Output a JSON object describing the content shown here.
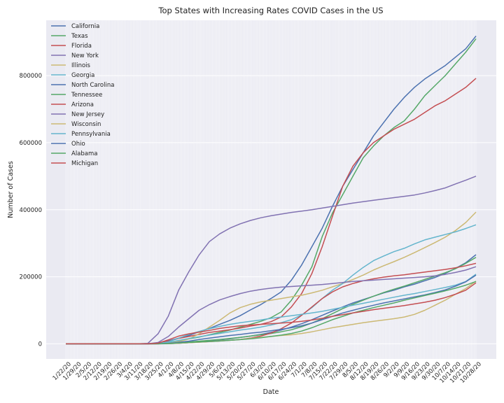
{
  "chart_data": {
    "type": "line",
    "title": "Top States with Increasing Rates COVID Cases in the US",
    "xlabel": "Date",
    "ylabel": "Number of Cases",
    "x_tick_labels": [
      "1/22/20",
      "1/29/20",
      "2/5/20",
      "2/12/20",
      "2/19/20",
      "2/26/20",
      "3/4/20",
      "3/11/20",
      "3/18/20",
      "3/25/20",
      "4/1/20",
      "4/8/20",
      "4/15/20",
      "4/22/20",
      "4/29/20",
      "5/6/20",
      "5/13/20",
      "5/20/20",
      "5/27/20",
      "6/3/20",
      "6/10/20",
      "6/17/20",
      "6/24/20",
      "7/1/20",
      "7/8/20",
      "7/15/20",
      "7/22/20",
      "7/29/20",
      "8/5/20",
      "8/12/20",
      "8/19/20",
      "8/26/20",
      "9/2/20",
      "9/9/20",
      "9/16/20",
      "9/23/20",
      "9/30/20",
      "10/7/20",
      "10/14/20",
      "10/21/20",
      "10/28/20"
    ],
    "y_ticks": [
      0,
      200000,
      400000,
      600000,
      800000
    ],
    "ylim": [
      -45000,
      965000
    ],
    "grid": true,
    "legend_position": "top-left",
    "series": [
      {
        "name": "California",
        "color": "#4c72b0",
        "values": [
          0,
          0,
          0,
          0,
          0,
          0,
          0,
          0,
          800,
          2500,
          9000,
          17000,
          25000,
          36000,
          46000,
          58000,
          70000,
          84000,
          101000,
          117000,
          135000,
          155000,
          190000,
          235000,
          290000,
          345000,
          410000,
          470000,
          520000,
          570000,
          620000,
          660000,
          700000,
          735000,
          765000,
          790000,
          810000,
          830000,
          855000,
          880000,
          918000
        ]
      },
      {
        "name": "Texas",
        "color": "#55a868",
        "values": [
          0,
          0,
          0,
          0,
          0,
          0,
          0,
          0,
          100,
          600,
          3000,
          9000,
          15000,
          20000,
          27000,
          34000,
          41000,
          50000,
          58000,
          67000,
          78000,
          95000,
          130000,
          175000,
          230000,
          320000,
          390000,
          445000,
          500000,
          555000,
          590000,
          620000,
          645000,
          665000,
          700000,
          740000,
          770000,
          800000,
          835000,
          870000,
          910000
        ]
      },
      {
        "name": "Florida",
        "color": "#c44e52",
        "values": [
          0,
          0,
          0,
          0,
          0,
          0,
          0,
          0,
          300,
          2000,
          7500,
          16000,
          22000,
          28000,
          34000,
          38000,
          42000,
          47000,
          53000,
          58000,
          66000,
          80000,
          110000,
          150000,
          210000,
          290000,
          380000,
          470000,
          530000,
          570000,
          600000,
          620000,
          640000,
          655000,
          670000,
          690000,
          710000,
          725000,
          745000,
          765000,
          792000
        ]
      },
      {
        "name": "New York",
        "color": "#8172b2",
        "values": [
          0,
          0,
          0,
          0,
          0,
          0,
          0,
          0,
          1500,
          30000,
          83000,
          160000,
          215000,
          265000,
          305000,
          328000,
          345000,
          358000,
          368000,
          376000,
          382000,
          387000,
          392000,
          396000,
          400000,
          405000,
          410000,
          415000,
          420000,
          424000,
          428000,
          432000,
          436000,
          440000,
          444000,
          450000,
          457000,
          465000,
          477000,
          488000,
          500000
        ]
      },
      {
        "name": "Illinois",
        "color": "#ccb974",
        "values": [
          0,
          0,
          0,
          0,
          0,
          0,
          0,
          0,
          0,
          300,
          1800,
          6500,
          14000,
          30000,
          50000,
          70000,
          92000,
          108000,
          118000,
          125000,
          130000,
          135000,
          140000,
          145000,
          152000,
          160000,
          170000,
          180000,
          192000,
          205000,
          220000,
          233000,
          245000,
          258000,
          272000,
          287000,
          302000,
          318000,
          338000,
          362000,
          393000
        ]
      },
      {
        "name": "Georgia",
        "color": "#64b5cd",
        "values": [
          0,
          0,
          0,
          0,
          0,
          0,
          0,
          0,
          100,
          1100,
          4500,
          10000,
          16000,
          21000,
          26000,
          31000,
          36000,
          41000,
          45000,
          50000,
          56000,
          63000,
          72000,
          86000,
          108000,
          135000,
          160000,
          180000,
          205000,
          228000,
          248000,
          262000,
          275000,
          285000,
          298000,
          310000,
          318000,
          326000,
          334000,
          344000,
          355000
        ]
      },
      {
        "name": "North Carolina",
        "color": "#4c72b0",
        "values": [
          0,
          0,
          0,
          0,
          0,
          0,
          0,
          0,
          0,
          100,
          500,
          1800,
          3500,
          6000,
          9000,
          12000,
          15000,
          19000,
          23000,
          28000,
          34000,
          41000,
          50000,
          60000,
          72000,
          85000,
          98000,
          110000,
          122000,
          132000,
          142000,
          152000,
          160000,
          170000,
          178000,
          188000,
          198000,
          210000,
          225000,
          242000,
          266000
        ]
      },
      {
        "name": "Tennessee",
        "color": "#55a868",
        "values": [
          0,
          0,
          0,
          0,
          0,
          0,
          0,
          0,
          0,
          200,
          1000,
          3000,
          5500,
          8000,
          10500,
          13000,
          16000,
          19000,
          23000,
          27000,
          31000,
          36000,
          42000,
          51000,
          62000,
          75000,
          90000,
          105000,
          118000,
          130000,
          142000,
          153000,
          163000,
          172000,
          182000,
          192000,
          202000,
          212000,
          224000,
          240000,
          258000
        ]
      },
      {
        "name": "Arizona",
        "color": "#c44e52",
        "values": [
          0,
          0,
          0,
          0,
          0,
          0,
          0,
          0,
          0,
          200,
          800,
          2000,
          3500,
          5000,
          6500,
          8500,
          10500,
          13000,
          17000,
          23000,
          32000,
          45000,
          62000,
          85000,
          110000,
          135000,
          155000,
          170000,
          180000,
          188000,
          194000,
          199000,
          203000,
          206000,
          210000,
          214000,
          218000,
          222000,
          227000,
          233000,
          240000
        ]
      },
      {
        "name": "New Jersey",
        "color": "#8172b2",
        "values": [
          0,
          0,
          0,
          0,
          0,
          0,
          0,
          0,
          0,
          4000,
          22000,
          50000,
          75000,
          100000,
          117000,
          131000,
          141000,
          150000,
          157000,
          162000,
          166000,
          169000,
          171000,
          173000,
          175000,
          177000,
          180000,
          183000,
          186000,
          188000,
          190000,
          192000,
          194000,
          196000,
          198000,
          200000,
          203000,
          207000,
          213000,
          220000,
          230000
        ]
      },
      {
        "name": "Wisconsin",
        "color": "#ccb974",
        "values": [
          0,
          0,
          0,
          0,
          0,
          0,
          0,
          0,
          0,
          100,
          700,
          2000,
          3500,
          5000,
          7000,
          9000,
          11000,
          13000,
          16000,
          19000,
          22000,
          25000,
          27000,
          31000,
          36000,
          42000,
          48000,
          53000,
          58000,
          63000,
          67000,
          71000,
          75000,
          80000,
          88000,
          100000,
          115000,
          130000,
          148000,
          165000,
          187000
        ]
      },
      {
        "name": "Pennsylvania",
        "color": "#64b5cd",
        "values": [
          0,
          0,
          0,
          0,
          0,
          0,
          0,
          0,
          100,
          900,
          6000,
          17000,
          28000,
          37000,
          45000,
          52000,
          58000,
          63000,
          67000,
          71000,
          76000,
          80000,
          84000,
          88000,
          92000,
          97000,
          103000,
          109000,
          115000,
          121000,
          127000,
          133000,
          139000,
          145000,
          150000,
          156000,
          162000,
          168000,
          175000,
          186000,
          208000
        ]
      },
      {
        "name": "Ohio",
        "color": "#4c72b0",
        "values": [
          0,
          0,
          0,
          0,
          0,
          0,
          0,
          0,
          0,
          100,
          1500,
          4500,
          8000,
          13000,
          17000,
          21000,
          25000,
          28000,
          32000,
          35000,
          39000,
          43000,
          48000,
          54000,
          62000,
          72000,
          82000,
          92000,
          100000,
          108000,
          115000,
          122000,
          128000,
          134000,
          140000,
          146000,
          153000,
          161000,
          172000,
          185000,
          205000
        ]
      },
      {
        "name": "Alabama",
        "color": "#55a868",
        "values": [
          0,
          0,
          0,
          0,
          0,
          0,
          0,
          0,
          0,
          100,
          900,
          2300,
          4000,
          5600,
          7000,
          8500,
          10500,
          12500,
          15000,
          18000,
          22000,
          26000,
          31000,
          38000,
          48000,
          60000,
          72000,
          82000,
          92000,
          100000,
          108000,
          115000,
          122000,
          130000,
          137000,
          144000,
          151000,
          158000,
          166000,
          175000,
          186000
        ]
      },
      {
        "name": "Michigan",
        "color": "#c44e52",
        "values": [
          0,
          0,
          0,
          0,
          0,
          0,
          0,
          0,
          100,
          2000,
          12000,
          23000,
          30000,
          35000,
          40000,
          46000,
          50000,
          54000,
          56000,
          58000,
          60000,
          62000,
          64000,
          67000,
          71000,
          76000,
          82000,
          87000,
          92000,
          97000,
          102000,
          106000,
          110000,
          114000,
          119000,
          124000,
          130000,
          138000,
          148000,
          160000,
          182000
        ]
      }
    ]
  }
}
